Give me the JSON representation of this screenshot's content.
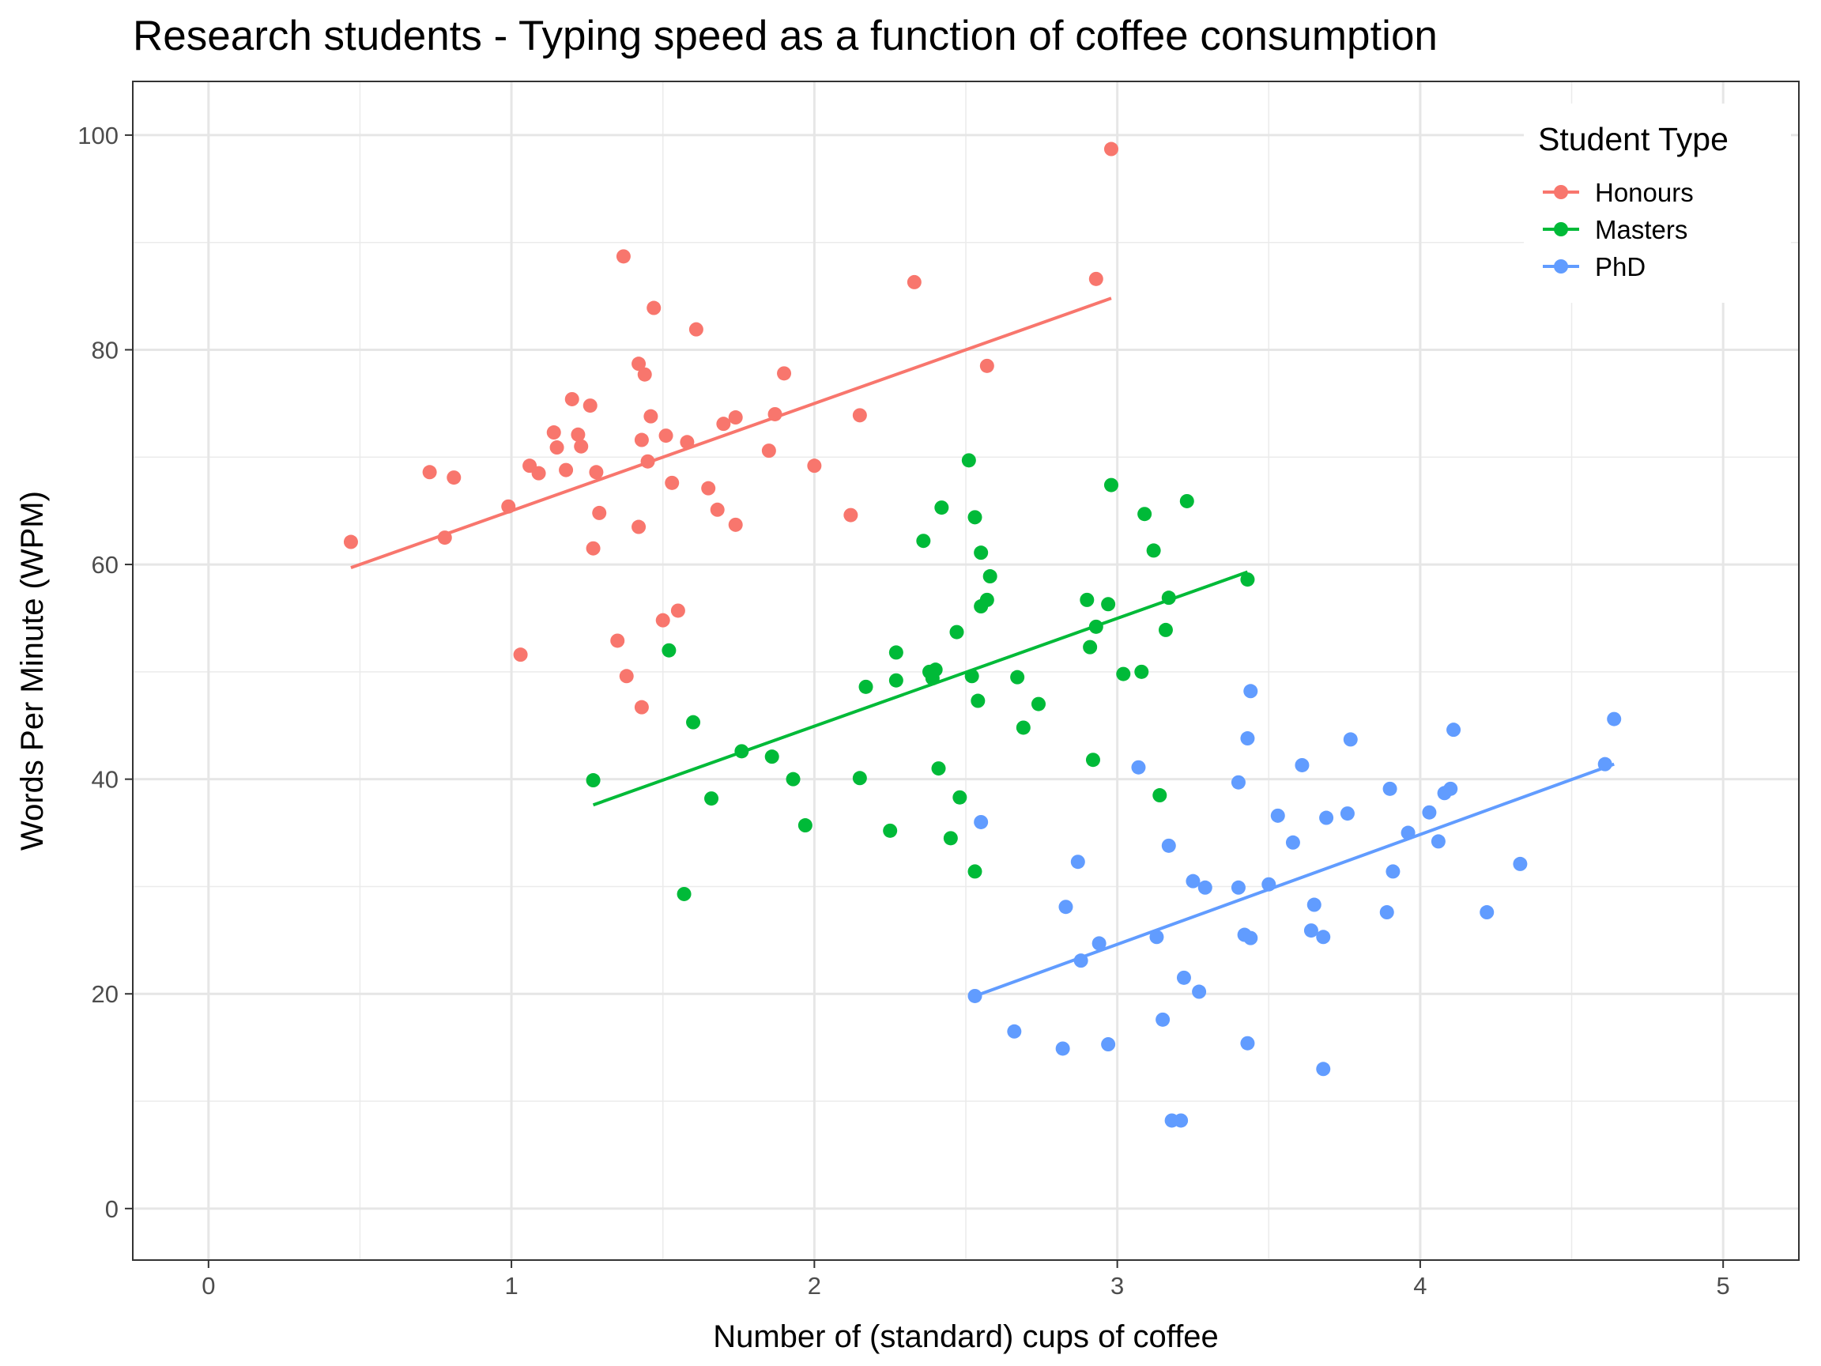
{
  "chart_data": {
    "type": "scatter",
    "title": "Research students - Typing speed as a function of coffee consumption",
    "xlabel": "Number of (standard) cups of coffee",
    "ylabel": "Words Per Minute (WPM)",
    "xlim": [
      -0.25,
      5.25
    ],
    "ylim": [
      -4.8,
      105
    ],
    "x_ticks": [
      0,
      1,
      2,
      3,
      4,
      5
    ],
    "y_ticks": [
      0,
      20,
      40,
      60,
      80,
      100
    ],
    "grid": true,
    "legend": {
      "title": "Student Type",
      "position": "top-right"
    },
    "series": [
      {
        "name": "Honours",
        "color": "#F8766D",
        "points": [
          [
            0.47,
            62.1
          ],
          [
            0.73,
            68.6
          ],
          [
            0.78,
            62.5
          ],
          [
            0.81,
            68.1
          ],
          [
            0.99,
            65.4
          ],
          [
            1.03,
            51.6
          ],
          [
            1.06,
            69.2
          ],
          [
            1.09,
            68.5
          ],
          [
            1.14,
            72.3
          ],
          [
            1.15,
            70.9
          ],
          [
            1.18,
            68.8
          ],
          [
            1.2,
            75.4
          ],
          [
            1.22,
            72.1
          ],
          [
            1.23,
            71.0
          ],
          [
            1.26,
            74.8
          ],
          [
            1.27,
            61.5
          ],
          [
            1.28,
            68.6
          ],
          [
            1.29,
            64.8
          ],
          [
            1.35,
            52.9
          ],
          [
            1.37,
            88.7
          ],
          [
            1.38,
            49.6
          ],
          [
            1.42,
            78.7
          ],
          [
            1.42,
            63.5
          ],
          [
            1.43,
            46.7
          ],
          [
            1.43,
            71.6
          ],
          [
            1.44,
            77.7
          ],
          [
            1.45,
            69.6
          ],
          [
            1.46,
            73.8
          ],
          [
            1.47,
            83.9
          ],
          [
            1.5,
            54.8
          ],
          [
            1.51,
            72.0
          ],
          [
            1.53,
            67.6
          ],
          [
            1.55,
            55.7
          ],
          [
            1.58,
            71.4
          ],
          [
            1.61,
            81.9
          ],
          [
            1.65,
            67.1
          ],
          [
            1.68,
            65.1
          ],
          [
            1.7,
            73.1
          ],
          [
            1.74,
            73.7
          ],
          [
            1.74,
            63.7
          ],
          [
            1.85,
            70.6
          ],
          [
            1.87,
            74.0
          ],
          [
            1.9,
            77.8
          ],
          [
            2.0,
            69.2
          ],
          [
            2.12,
            64.6
          ],
          [
            2.15,
            73.9
          ],
          [
            2.33,
            86.3
          ],
          [
            2.57,
            78.5
          ],
          [
            2.93,
            86.6
          ],
          [
            2.98,
            98.7
          ]
        ],
        "fit": [
          [
            0.47,
            59.7
          ],
          [
            2.98,
            84.8
          ]
        ]
      },
      {
        "name": "Masters",
        "color": "#00BA38",
        "points": [
          [
            1.27,
            39.9
          ],
          [
            1.52,
            52.0
          ],
          [
            1.57,
            29.3
          ],
          [
            1.6,
            45.3
          ],
          [
            1.66,
            38.2
          ],
          [
            1.76,
            42.6
          ],
          [
            1.86,
            42.1
          ],
          [
            1.93,
            40.0
          ],
          [
            1.97,
            35.7
          ],
          [
            2.15,
            40.1
          ],
          [
            2.17,
            48.6
          ],
          [
            2.25,
            35.2
          ],
          [
            2.27,
            51.8
          ],
          [
            2.27,
            49.2
          ],
          [
            2.36,
            62.2
          ],
          [
            2.38,
            50.0
          ],
          [
            2.39,
            49.4
          ],
          [
            2.4,
            50.2
          ],
          [
            2.41,
            41.0
          ],
          [
            2.42,
            65.3
          ],
          [
            2.45,
            34.5
          ],
          [
            2.47,
            53.7
          ],
          [
            2.48,
            38.3
          ],
          [
            2.51,
            69.7
          ],
          [
            2.52,
            49.6
          ],
          [
            2.53,
            31.4
          ],
          [
            2.53,
            64.4
          ],
          [
            2.54,
            47.3
          ],
          [
            2.55,
            56.1
          ],
          [
            2.55,
            61.1
          ],
          [
            2.57,
            56.7
          ],
          [
            2.58,
            58.9
          ],
          [
            2.67,
            49.5
          ],
          [
            2.69,
            44.8
          ],
          [
            2.74,
            47.0
          ],
          [
            2.9,
            56.7
          ],
          [
            2.91,
            52.3
          ],
          [
            2.92,
            41.8
          ],
          [
            2.93,
            54.2
          ],
          [
            2.97,
            56.3
          ],
          [
            2.98,
            67.4
          ],
          [
            3.02,
            49.8
          ],
          [
            3.08,
            50.0
          ],
          [
            3.09,
            64.7
          ],
          [
            3.12,
            61.3
          ],
          [
            3.14,
            38.5
          ],
          [
            3.16,
            53.9
          ],
          [
            3.17,
            56.9
          ],
          [
            3.23,
            65.9
          ],
          [
            3.43,
            58.6
          ]
        ],
        "fit": [
          [
            1.27,
            37.6
          ],
          [
            3.43,
            59.3
          ]
        ]
      },
      {
        "name": "PhD",
        "color": "#619CFF",
        "points": [
          [
            2.53,
            19.8
          ],
          [
            2.55,
            36.0
          ],
          [
            2.66,
            16.5
          ],
          [
            2.82,
            14.9
          ],
          [
            2.83,
            28.1
          ],
          [
            2.87,
            32.3
          ],
          [
            2.88,
            23.1
          ],
          [
            2.94,
            24.7
          ],
          [
            2.97,
            15.3
          ],
          [
            3.07,
            41.1
          ],
          [
            3.13,
            25.3
          ],
          [
            3.15,
            17.6
          ],
          [
            3.17,
            33.8
          ],
          [
            3.18,
            8.2
          ],
          [
            3.21,
            8.2
          ],
          [
            3.22,
            21.5
          ],
          [
            3.25,
            30.5
          ],
          [
            3.27,
            20.2
          ],
          [
            3.29,
            29.9
          ],
          [
            3.4,
            29.9
          ],
          [
            3.4,
            39.7
          ],
          [
            3.42,
            25.5
          ],
          [
            3.43,
            43.8
          ],
          [
            3.43,
            15.4
          ],
          [
            3.44,
            48.2
          ],
          [
            3.44,
            25.2
          ],
          [
            3.5,
            30.2
          ],
          [
            3.53,
            36.6
          ],
          [
            3.58,
            34.1
          ],
          [
            3.61,
            41.3
          ],
          [
            3.64,
            25.9
          ],
          [
            3.65,
            28.3
          ],
          [
            3.68,
            25.3
          ],
          [
            3.68,
            13.0
          ],
          [
            3.69,
            36.4
          ],
          [
            3.76,
            36.8
          ],
          [
            3.77,
            43.7
          ],
          [
            3.89,
            27.6
          ],
          [
            3.9,
            39.1
          ],
          [
            3.91,
            31.4
          ],
          [
            3.96,
            35.0
          ],
          [
            4.03,
            36.9
          ],
          [
            4.06,
            34.2
          ],
          [
            4.08,
            38.7
          ],
          [
            4.1,
            39.1
          ],
          [
            4.11,
            44.6
          ],
          [
            4.22,
            27.6
          ],
          [
            4.33,
            32.1
          ],
          [
            4.61,
            41.4
          ],
          [
            4.64,
            45.6
          ]
        ],
        "fit": [
          [
            2.53,
            19.8
          ],
          [
            4.64,
            41.4
          ]
        ]
      }
    ]
  }
}
